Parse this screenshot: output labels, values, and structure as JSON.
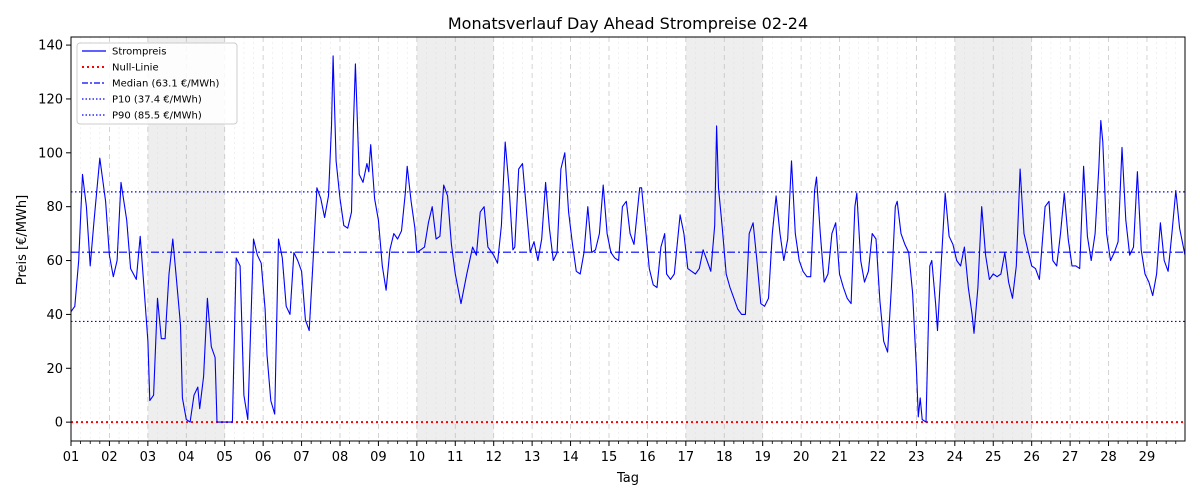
{
  "chart_data": {
    "type": "line",
    "title": "Monatsverlauf Day Ahead Strompreise 02-24",
    "xlabel": "Tag",
    "ylabel": "Preis [€/MWh]",
    "xlim": [
      1,
      29.99
    ],
    "ylim": [
      -7,
      143
    ],
    "y_ticks": [
      0,
      20,
      40,
      60,
      80,
      100,
      120,
      140
    ],
    "x_ticks": [
      {
        "day": 1,
        "label": "01"
      },
      {
        "day": 2,
        "label": "02"
      },
      {
        "day": 3,
        "label": "03"
      },
      {
        "day": 4,
        "label": "04"
      },
      {
        "day": 5,
        "label": "05"
      },
      {
        "day": 6,
        "label": "06"
      },
      {
        "day": 7,
        "label": "07"
      },
      {
        "day": 8,
        "label": "08"
      },
      {
        "day": 9,
        "label": "09"
      },
      {
        "day": 10,
        "label": "10"
      },
      {
        "day": 11,
        "label": "11"
      },
      {
        "day": 12,
        "label": "12"
      },
      {
        "day": 13,
        "label": "13"
      },
      {
        "day": 14,
        "label": "14"
      },
      {
        "day": 15,
        "label": "15"
      },
      {
        "day": 16,
        "label": "16"
      },
      {
        "day": 17,
        "label": "17"
      },
      {
        "day": 18,
        "label": "18"
      },
      {
        "day": 19,
        "label": "19"
      },
      {
        "day": 20,
        "label": "20"
      },
      {
        "day": 21,
        "label": "21"
      },
      {
        "day": 22,
        "label": "22"
      },
      {
        "day": 23,
        "label": "23"
      },
      {
        "day": 24,
        "label": "24"
      },
      {
        "day": 25,
        "label": "25"
      },
      {
        "day": 26,
        "label": "26"
      },
      {
        "day": 27,
        "label": "27"
      },
      {
        "day": 28,
        "label": "28"
      },
      {
        "day": 29,
        "label": "29"
      }
    ],
    "weekend_spans": [
      [
        3,
        5
      ],
      [
        10,
        12
      ],
      [
        17,
        19
      ],
      [
        24,
        26
      ]
    ],
    "grid": true,
    "legend_position": "top-left",
    "series": {
      "name": "Strompreis",
      "color": "#0000ff",
      "points": [
        [
          1.0,
          41
        ],
        [
          1.1,
          43
        ],
        [
          1.2,
          60
        ],
        [
          1.3,
          92
        ],
        [
          1.4,
          80
        ],
        [
          1.5,
          58
        ],
        [
          1.6,
          75
        ],
        [
          1.75,
          98
        ],
        [
          1.9,
          82
        ],
        [
          2.0,
          62
        ],
        [
          2.1,
          54
        ],
        [
          2.2,
          60
        ],
        [
          2.3,
          89
        ],
        [
          2.45,
          75
        ],
        [
          2.55,
          57
        ],
        [
          2.7,
          53
        ],
        [
          2.8,
          69
        ],
        [
          2.9,
          50
        ],
        [
          3.0,
          30
        ],
        [
          3.05,
          8
        ],
        [
          3.15,
          10
        ],
        [
          3.25,
          46
        ],
        [
          3.35,
          31
        ],
        [
          3.45,
          31
        ],
        [
          3.55,
          55
        ],
        [
          3.65,
          68
        ],
        [
          3.75,
          52
        ],
        [
          3.85,
          36
        ],
        [
          3.9,
          9
        ],
        [
          4.0,
          1
        ],
        [
          4.1,
          0
        ],
        [
          4.2,
          10
        ],
        [
          4.3,
          13
        ],
        [
          4.35,
          5
        ],
        [
          4.45,
          17
        ],
        [
          4.55,
          46
        ],
        [
          4.65,
          28
        ],
        [
          4.75,
          24
        ],
        [
          4.8,
          0
        ],
        [
          4.9,
          0
        ],
        [
          5.2,
          0
        ],
        [
          5.3,
          61
        ],
        [
          5.4,
          58
        ],
        [
          5.5,
          10
        ],
        [
          5.6,
          1
        ],
        [
          5.75,
          68
        ],
        [
          5.85,
          62
        ],
        [
          5.95,
          59
        ],
        [
          6.05,
          42
        ],
        [
          6.1,
          25
        ],
        [
          6.2,
          8
        ],
        [
          6.3,
          3
        ],
        [
          6.4,
          68
        ],
        [
          6.5,
          61
        ],
        [
          6.6,
          43
        ],
        [
          6.7,
          40
        ],
        [
          6.8,
          63
        ],
        [
          6.9,
          60
        ],
        [
          7.0,
          56
        ],
        [
          7.1,
          38
        ],
        [
          7.2,
          34
        ],
        [
          7.3,
          60
        ],
        [
          7.4,
          87
        ],
        [
          7.5,
          83
        ],
        [
          7.6,
          76
        ],
        [
          7.7,
          84
        ],
        [
          7.78,
          110
        ],
        [
          7.82,
          136
        ],
        [
          7.9,
          97
        ],
        [
          8.0,
          83
        ],
        [
          8.1,
          73
        ],
        [
          8.2,
          72
        ],
        [
          8.3,
          78
        ],
        [
          8.35,
          110
        ],
        [
          8.4,
          133
        ],
        [
          8.5,
          92
        ],
        [
          8.6,
          89
        ],
        [
          8.7,
          96
        ],
        [
          8.75,
          93
        ],
        [
          8.8,
          103
        ],
        [
          8.9,
          83
        ],
        [
          9.0,
          75
        ],
        [
          9.1,
          58
        ],
        [
          9.2,
          49
        ],
        [
          9.3,
          64
        ],
        [
          9.4,
          70
        ],
        [
          9.5,
          68
        ],
        [
          9.6,
          71
        ],
        [
          9.7,
          85
        ],
        [
          9.75,
          95
        ],
        [
          9.85,
          82
        ],
        [
          9.95,
          72
        ],
        [
          10.0,
          63
        ],
        [
          10.1,
          64
        ],
        [
          10.2,
          65
        ],
        [
          10.3,
          74
        ],
        [
          10.4,
          80
        ],
        [
          10.5,
          68
        ],
        [
          10.6,
          69
        ],
        [
          10.7,
          88
        ],
        [
          10.8,
          84
        ],
        [
          10.9,
          66
        ],
        [
          11.0,
          55
        ],
        [
          11.15,
          44
        ],
        [
          11.3,
          55
        ],
        [
          11.45,
          65
        ],
        [
          11.55,
          62
        ],
        [
          11.65,
          78
        ],
        [
          11.75,
          80
        ],
        [
          11.85,
          65
        ],
        [
          12.0,
          62
        ],
        [
          12.1,
          59
        ],
        [
          12.2,
          73
        ],
        [
          12.3,
          104
        ],
        [
          12.4,
          87
        ],
        [
          12.5,
          64
        ],
        [
          12.55,
          65
        ],
        [
          12.65,
          94
        ],
        [
          12.75,
          96
        ],
        [
          12.85,
          79
        ],
        [
          12.95,
          63
        ],
        [
          13.05,
          67
        ],
        [
          13.15,
          60
        ],
        [
          13.25,
          68
        ],
        [
          13.35,
          89
        ],
        [
          13.45,
          72
        ],
        [
          13.55,
          60
        ],
        [
          13.65,
          63
        ],
        [
          13.75,
          94
        ],
        [
          13.85,
          100
        ],
        [
          13.95,
          78
        ],
        [
          14.05,
          66
        ],
        [
          14.15,
          56
        ],
        [
          14.25,
          55
        ],
        [
          14.35,
          63
        ],
        [
          14.45,
          80
        ],
        [
          14.55,
          63
        ],
        [
          14.65,
          64
        ],
        [
          14.75,
          70
        ],
        [
          14.85,
          88
        ],
        [
          14.95,
          70
        ],
        [
          15.05,
          63
        ],
        [
          15.15,
          61
        ],
        [
          15.25,
          60
        ],
        [
          15.35,
          80
        ],
        [
          15.45,
          82
        ],
        [
          15.55,
          70
        ],
        [
          15.65,
          66
        ],
        [
          15.8,
          87
        ],
        [
          15.85,
          87
        ],
        [
          15.95,
          72
        ],
        [
          16.05,
          57
        ],
        [
          16.15,
          51
        ],
        [
          16.25,
          50
        ],
        [
          16.35,
          65
        ],
        [
          16.45,
          70
        ],
        [
          16.5,
          55
        ],
        [
          16.6,
          53
        ],
        [
          16.7,
          55
        ],
        [
          16.85,
          77
        ],
        [
          16.95,
          70
        ],
        [
          17.05,
          57
        ],
        [
          17.15,
          56
        ],
        [
          17.25,
          55
        ],
        [
          17.35,
          57
        ],
        [
          17.45,
          64
        ],
        [
          17.55,
          60
        ],
        [
          17.65,
          56
        ],
        [
          17.75,
          73
        ],
        [
          17.8,
          110
        ],
        [
          17.85,
          87
        ],
        [
          17.95,
          72
        ],
        [
          18.05,
          55
        ],
        [
          18.15,
          50
        ],
        [
          18.25,
          46
        ],
        [
          18.35,
          42
        ],
        [
          18.45,
          40
        ],
        [
          18.55,
          40
        ],
        [
          18.65,
          70
        ],
        [
          18.75,
          74
        ],
        [
          18.85,
          60
        ],
        [
          18.95,
          44
        ],
        [
          19.05,
          43
        ],
        [
          19.15,
          46
        ],
        [
          19.25,
          70
        ],
        [
          19.35,
          84
        ],
        [
          19.45,
          70
        ],
        [
          19.55,
          60
        ],
        [
          19.65,
          68
        ],
        [
          19.75,
          97
        ],
        [
          19.85,
          70
        ],
        [
          19.95,
          60
        ],
        [
          20.05,
          56
        ],
        [
          20.15,
          54
        ],
        [
          20.25,
          54
        ],
        [
          20.35,
          86
        ],
        [
          20.4,
          91
        ],
        [
          20.5,
          70
        ],
        [
          20.6,
          52
        ],
        [
          20.7,
          55
        ],
        [
          20.8,
          70
        ],
        [
          20.9,
          74
        ],
        [
          21.0,
          55
        ],
        [
          21.1,
          50
        ],
        [
          21.2,
          46
        ],
        [
          21.3,
          44
        ],
        [
          21.4,
          80
        ],
        [
          21.45,
          85
        ],
        [
          21.55,
          60
        ],
        [
          21.65,
          52
        ],
        [
          21.75,
          56
        ],
        [
          21.85,
          70
        ],
        [
          21.95,
          68
        ],
        [
          22.05,
          45
        ],
        [
          22.15,
          30
        ],
        [
          22.25,
          26
        ],
        [
          22.35,
          50
        ],
        [
          22.45,
          80
        ],
        [
          22.5,
          82
        ],
        [
          22.6,
          70
        ],
        [
          22.7,
          66
        ],
        [
          22.8,
          63
        ],
        [
          22.9,
          48
        ],
        [
          23.0,
          20
        ],
        [
          23.05,
          2
        ],
        [
          23.1,
          9
        ],
        [
          23.15,
          1
        ],
        [
          23.25,
          0
        ],
        [
          23.35,
          58
        ],
        [
          23.4,
          60
        ],
        [
          23.5,
          44
        ],
        [
          23.55,
          34
        ],
        [
          23.65,
          60
        ],
        [
          23.75,
          85
        ],
        [
          23.85,
          69
        ],
        [
          23.95,
          66
        ],
        [
          24.05,
          60
        ],
        [
          24.15,
          58
        ],
        [
          24.25,
          65
        ],
        [
          24.35,
          50
        ],
        [
          24.45,
          40
        ],
        [
          24.5,
          33
        ],
        [
          24.6,
          50
        ],
        [
          24.7,
          80
        ],
        [
          24.8,
          62
        ],
        [
          24.9,
          53
        ],
        [
          25.0,
          55
        ],
        [
          25.1,
          54
        ],
        [
          25.2,
          55
        ],
        [
          25.3,
          63
        ],
        [
          25.4,
          52
        ],
        [
          25.5,
          46
        ],
        [
          25.6,
          58
        ],
        [
          25.7,
          94
        ],
        [
          25.8,
          70
        ],
        [
          25.9,
          64
        ],
        [
          26.0,
          58
        ],
        [
          26.1,
          57
        ],
        [
          26.2,
          53
        ],
        [
          26.35,
          80
        ],
        [
          26.45,
          82
        ],
        [
          26.55,
          60
        ],
        [
          26.65,
          58
        ],
        [
          26.75,
          70
        ],
        [
          26.85,
          85
        ],
        [
          26.95,
          68
        ],
        [
          27.05,
          58
        ],
        [
          27.15,
          58
        ],
        [
          27.25,
          57
        ],
        [
          27.35,
          95
        ],
        [
          27.45,
          69
        ],
        [
          27.55,
          60
        ],
        [
          27.65,
          70
        ],
        [
          27.75,
          95
        ],
        [
          27.8,
          112
        ],
        [
          27.85,
          104
        ],
        [
          27.95,
          70
        ],
        [
          28.05,
          60
        ],
        [
          28.15,
          63
        ],
        [
          28.25,
          67
        ],
        [
          28.35,
          102
        ],
        [
          28.45,
          75
        ],
        [
          28.55,
          62
        ],
        [
          28.65,
          65
        ],
        [
          28.75,
          93
        ],
        [
          28.85,
          64
        ],
        [
          28.95,
          55
        ],
        [
          29.05,
          52
        ],
        [
          29.15,
          47
        ],
        [
          29.25,
          55
        ],
        [
          29.35,
          74
        ],
        [
          29.45,
          60
        ],
        [
          29.55,
          56
        ],
        [
          29.65,
          70
        ],
        [
          29.75,
          86
        ],
        [
          29.85,
          72
        ],
        [
          29.99,
          62
        ]
      ]
    },
    "reference_lines": [
      {
        "name": "Null-Linie",
        "value": 0,
        "color": "#ff0000",
        "style": "dotted-thick"
      },
      {
        "name": "Median (63.1 €/MWh)",
        "value": 63.1,
        "color": "#0000ff",
        "style": "dashdot"
      },
      {
        "name": "P10 (37.4 €/MWh)",
        "value": 37.4,
        "color": "#0000ff",
        "style": "dotted"
      },
      {
        "name": "P90 (85.5 €/MWh)",
        "value": 85.5,
        "color": "#0000ff",
        "style": "dotted"
      }
    ]
  }
}
